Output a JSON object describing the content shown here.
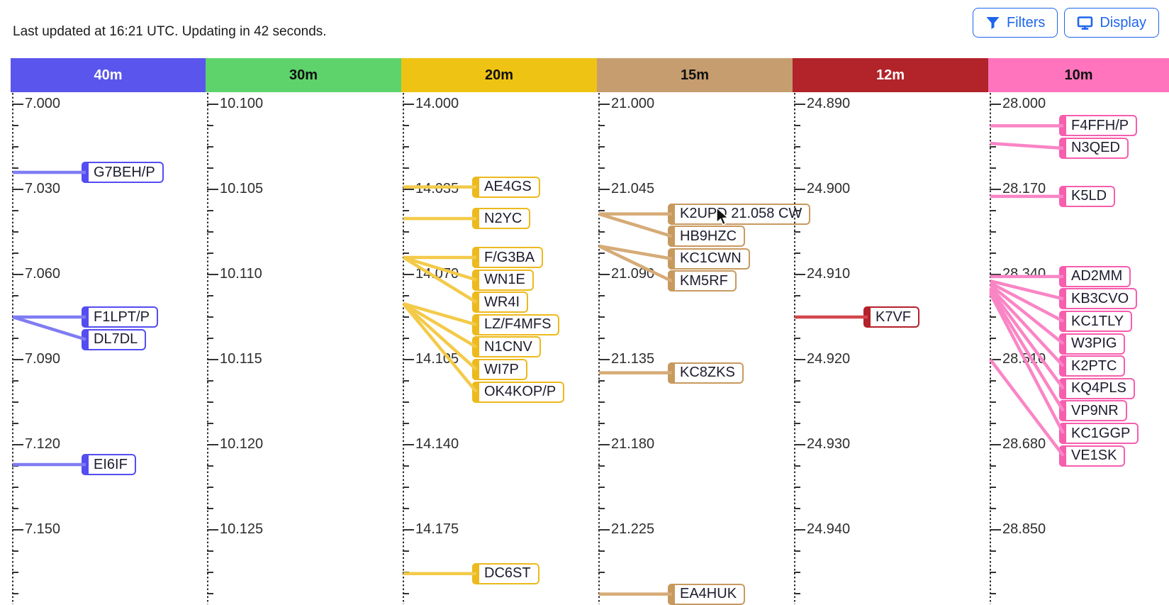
{
  "status": {
    "text": "Last updated at 16:21 UTC. Updating in 42 seconds."
  },
  "toolbar": {
    "accent": "#1d66ec",
    "filters_label": "Filters",
    "display_label": "Display"
  },
  "icons": [
    "filter-funnel-icon",
    "display-monitor-icon",
    "mouse-cursor-icon"
  ],
  "chart_data": {
    "type": "band-activity-timeline",
    "unit": "MHz",
    "bands": [
      {
        "label": "40m",
        "header_bg": "#5a55ec",
        "header_fg": "#ffffff",
        "accent": "#544df0",
        "line_color": "#7f7cf3",
        "freq_start": 7.0,
        "freq_step": 0.03,
        "major_ticks": [
          "7.000",
          "7.030",
          "7.060",
          "7.090",
          "7.120",
          "7.150"
        ],
        "spots": [
          {
            "call": "G7BEH/P",
            "freq": 7.024
          },
          {
            "call": "F1LPT/P",
            "freq": 7.075
          },
          {
            "call": "DL7DL",
            "freq": 7.075
          },
          {
            "call": "EI6IF",
            "freq": 7.127
          }
        ]
      },
      {
        "label": "30m",
        "header_bg": "#5ed36b",
        "header_fg": "#101010",
        "accent": "#43c153",
        "line_color": "#7adf86",
        "freq_start": 10.1,
        "freq_step": 0.005,
        "major_ticks": [
          "10.100",
          "10.105",
          "10.110",
          "10.115",
          "10.120",
          "10.125"
        ],
        "spots": []
      },
      {
        "label": "20m",
        "header_bg": "#efc313",
        "header_fg": "#101010",
        "accent": "#edb91d",
        "line_color": "#f3ca49",
        "freq_start": 14.0,
        "freq_step": 0.035,
        "major_ticks": [
          "14.000",
          "14.035",
          "14.070",
          "14.105",
          "14.140",
          "14.175"
        ],
        "spots": [
          {
            "call": "AE4GS",
            "freq": 14.034
          },
          {
            "call": "N2YC",
            "freq": 14.047
          },
          {
            "call": "F/G3BA",
            "freq": 14.063
          },
          {
            "call": "WN1E",
            "freq": 14.063
          },
          {
            "call": "WR4I",
            "freq": 14.063
          },
          {
            "call": "LZ/F4MFS",
            "freq": 14.082
          },
          {
            "call": "N1CNV",
            "freq": 14.082
          },
          {
            "call": "WI7P",
            "freq": 14.082
          },
          {
            "call": "OK4KOP/P",
            "freq": 14.082
          },
          {
            "call": "DC6ST",
            "freq": 14.193
          }
        ]
      },
      {
        "label": "15m",
        "header_bg": "#c69d6e",
        "header_fg": "#101010",
        "accent": "#c8995f",
        "line_color": "#d6ab77",
        "freq_start": 21.0,
        "freq_step": 0.045,
        "major_ticks": [
          "21.000",
          "21.045",
          "21.090",
          "21.135",
          "21.180",
          "21.225"
        ],
        "spots": [
          {
            "call": "K2UPD",
            "freq": 21.058,
            "detail": "21.058 CW",
            "expanded": true
          },
          {
            "call": "HB9HZC",
            "freq": 21.058
          },
          {
            "call": "KC1CWN",
            "freq": 21.075
          },
          {
            "call": "KM5RF",
            "freq": 21.075
          },
          {
            "call": "KC8ZKS",
            "freq": 21.142
          },
          {
            "call": "EA4HUK",
            "freq": 21.259
          }
        ]
      },
      {
        "label": "12m",
        "header_bg": "#b2232a",
        "header_fg": "#ffffff",
        "accent": "#b3212a",
        "line_color": "#d2464d",
        "freq_start": 24.89,
        "freq_step": 0.01,
        "major_ticks": [
          "24.890",
          "24.900",
          "24.910",
          "24.920",
          "24.930",
          "24.940"
        ],
        "spots": [
          {
            "call": "K7VF",
            "freq": 24.915
          }
        ]
      },
      {
        "label": "10m",
        "header_bg": "#ff74bc",
        "header_fg": "#101010",
        "accent": "#f65eae",
        "line_color": "#fa85c5",
        "freq_start": 28.0,
        "freq_step": 0.17,
        "major_ticks": [
          "28.000",
          "28.170",
          "28.340",
          "28.510",
          "28.680",
          "28.850"
        ],
        "spots": [
          {
            "call": "F4FFH/P",
            "freq": 28.043
          },
          {
            "call": "N3QED",
            "freq": 28.078
          },
          {
            "call": "K5LD",
            "freq": 28.184
          },
          {
            "call": "AD2MM",
            "freq": 28.344
          },
          {
            "call": "KB3CVO",
            "freq": 28.353
          },
          {
            "call": "KC1TLY",
            "freq": 28.357
          },
          {
            "call": "W3PIG",
            "freq": 28.361
          },
          {
            "call": "K2PTC",
            "freq": 28.366
          },
          {
            "call": "KQ4PLS",
            "freq": 28.37
          },
          {
            "call": "VP9NR",
            "freq": 28.374
          },
          {
            "call": "KC1GGP",
            "freq": 28.378
          },
          {
            "call": "VE1SK",
            "freq": 28.51
          }
        ]
      }
    ]
  }
}
